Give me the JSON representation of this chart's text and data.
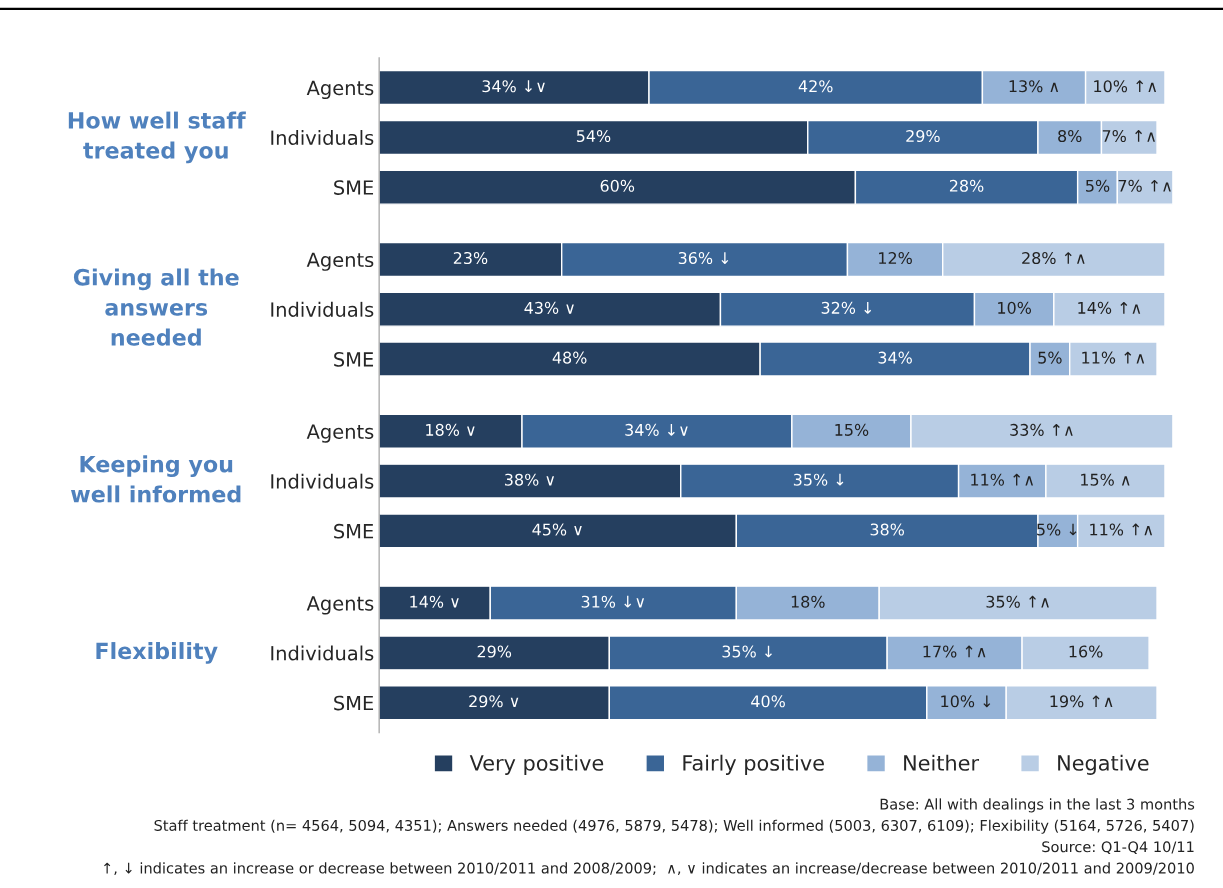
{
  "chart_data": {
    "type": "bar",
    "orientation": "horizontal",
    "stacked": true,
    "categories": [
      "Agents",
      "Individuals",
      "SME",
      "Agents",
      "Individuals",
      "SME",
      "Agents",
      "Individuals",
      "SME",
      "Agents",
      "Individuals",
      "SME"
    ],
    "series": [
      {
        "name": "Very positive",
        "color": "#253f5f",
        "values": [
          34,
          54,
          60,
          23,
          43,
          48,
          18,
          38,
          45,
          14,
          29,
          29
        ],
        "value_labels": [
          "34% ↓∨",
          "54%",
          "60%",
          "23%",
          "43% ∨",
          "48%",
          "18% ∨",
          "38% ∨",
          "45% ∨",
          "14% ∨",
          "29%",
          "29% ∨"
        ]
      },
      {
        "name": "Fairly positive",
        "color": "#3a6596",
        "values": [
          42,
          29,
          28,
          36,
          32,
          34,
          34,
          35,
          38,
          31,
          35,
          40
        ],
        "value_labels": [
          "42%",
          "29%",
          "28%",
          "36% ↓",
          "32% ↓",
          "34%",
          "34% ↓∨",
          "35% ↓",
          "38%",
          "31% ↓∨",
          "35% ↓",
          "40%"
        ]
      },
      {
        "name": "Neither",
        "color": "#95b3d7",
        "values": [
          13,
          8,
          5,
          12,
          10,
          5,
          15,
          11,
          5,
          18,
          17,
          10
        ],
        "value_labels": [
          "13% ∧",
          "8%",
          "5%",
          "12%",
          "10%",
          "5%",
          "15%",
          "11% ↑∧",
          "5% ↓",
          "18%",
          "17% ↑∧",
          "10% ↓"
        ]
      },
      {
        "name": "Negative",
        "color": "#b9cde5",
        "values": [
          10,
          7,
          7,
          28,
          14,
          11,
          33,
          15,
          11,
          35,
          16,
          19
        ],
        "value_labels": [
          "10% ↑∧",
          "7% ↑∧",
          "7% ↑∧",
          "28% ↑∧",
          "14% ↑∧",
          "11% ↑∧",
          "33% ↑∧",
          "15% ∧",
          "11% ↑∧",
          "35% ↑∧",
          "16%",
          "19% ↑∧"
        ]
      }
    ],
    "annotations": [
      "How well staff\ntreated you",
      "Giving all the\nanswers\nneeded",
      "Keeping you\nwell informed",
      "Flexibility",
      "Base: All with dealings in the last 3 months",
      "Staff treatment (n= 4564, 5094, 4351); Answers needed (4976, 5879, 5478); Well informed (5003, 6307, 6109); Flexibility (5164, 5726, 5407)",
      "Source: Q1-Q4 10/11",
      "↑, ↓ indicates an increase or decrease between 2010/2011 and 2008/2009;  ∧, ∨ indicates an increase/decrease between 2010/2011 and 2009/2010"
    ],
    "legend": "bottom",
    "grid": false
  }
}
